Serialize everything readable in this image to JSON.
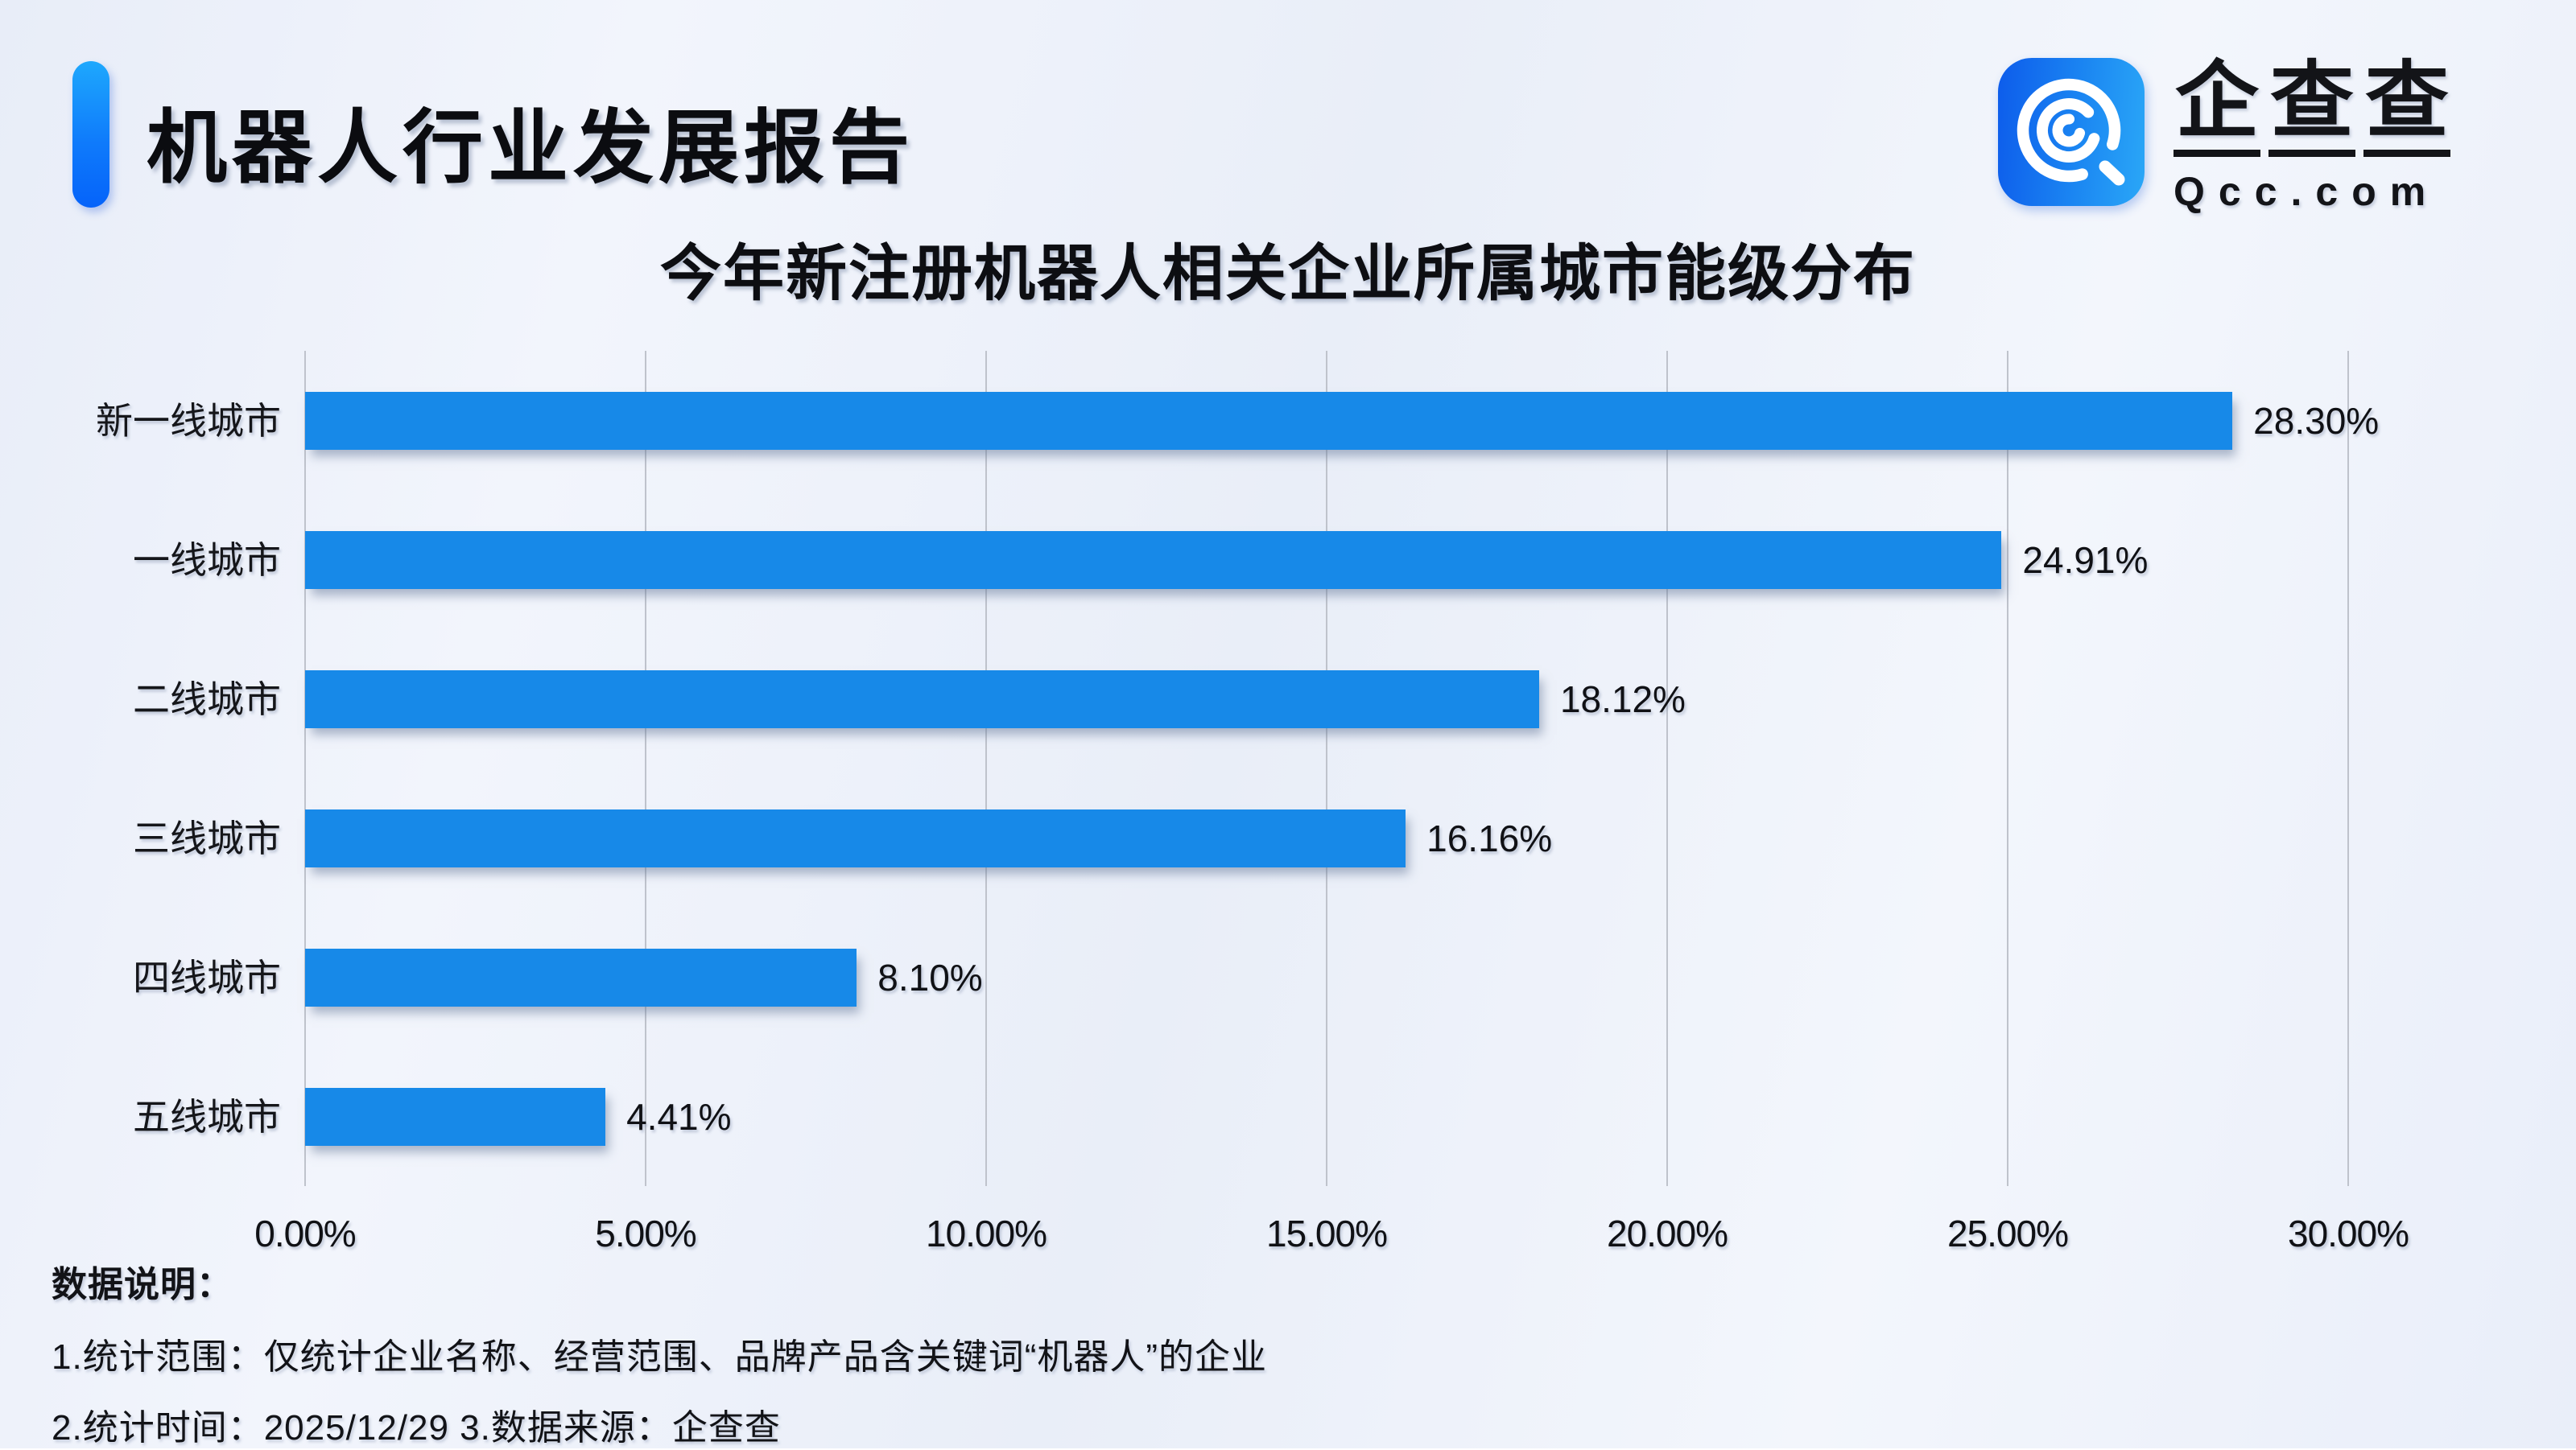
{
  "header": {
    "report_title": "机器人行业发展报告"
  },
  "logo": {
    "char1": "企",
    "char2": "查",
    "char3": "查",
    "domain": "Qcc.com"
  },
  "chart_data": {
    "type": "bar",
    "orientation": "horizontal",
    "title": "今年新注册机器人相关企业所属城市能级分布",
    "categories": [
      "新一线城市",
      "一线城市",
      "二线城市",
      "三线城市",
      "四线城市",
      "五线城市"
    ],
    "values": [
      28.3,
      24.91,
      18.12,
      16.16,
      8.1,
      4.41
    ],
    "value_labels": [
      "28.30%",
      "24.91%",
      "18.12%",
      "16.16%",
      "8.10%",
      "4.41%"
    ],
    "x_ticks": [
      "0.00%",
      "5.00%",
      "10.00%",
      "15.00%",
      "20.00%",
      "25.00%",
      "30.00%"
    ],
    "xlim": [
      0,
      30
    ],
    "xlabel": "",
    "ylabel": "",
    "grid": true,
    "legend": "none",
    "bar_color": "#1789e8",
    "gridline_color": "#bfc3cc"
  },
  "notes": {
    "heading": "数据说明：",
    "line1": "1.统计范围：仅统计企业名称、经营范围、品牌产品含关键词“机器人”的企业",
    "line2": "2.统计时间：2025/12/29 3.数据来源：企查查"
  }
}
